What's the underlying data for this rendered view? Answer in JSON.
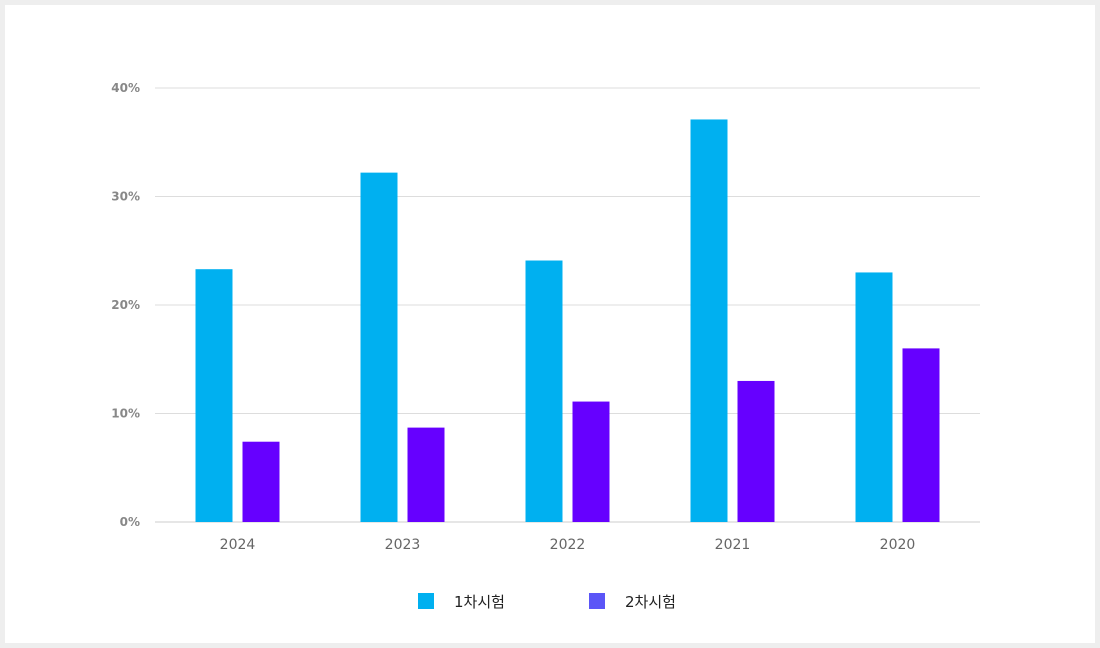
{
  "chart_data": {
    "type": "bar",
    "categories": [
      "2024",
      "2023",
      "2022",
      "2021",
      "2020"
    ],
    "series": [
      {
        "name": "1차시험",
        "values": [
          23.3,
          32.2,
          24.1,
          37.1,
          23.0
        ],
        "color": "#00b0f0"
      },
      {
        "name": "2차시험",
        "values": [
          7.4,
          8.7,
          11.1,
          13.0,
          16.0
        ],
        "color": "#6600ff"
      }
    ],
    "ylim": [
      0,
      40
    ],
    "yticks": [
      "0%",
      "10%",
      "20%",
      "30%",
      "40%"
    ],
    "grid": true,
    "legend_position": "bottom",
    "legend_swatch_colors": [
      "#00b0f0",
      "#5b55f7"
    ]
  }
}
